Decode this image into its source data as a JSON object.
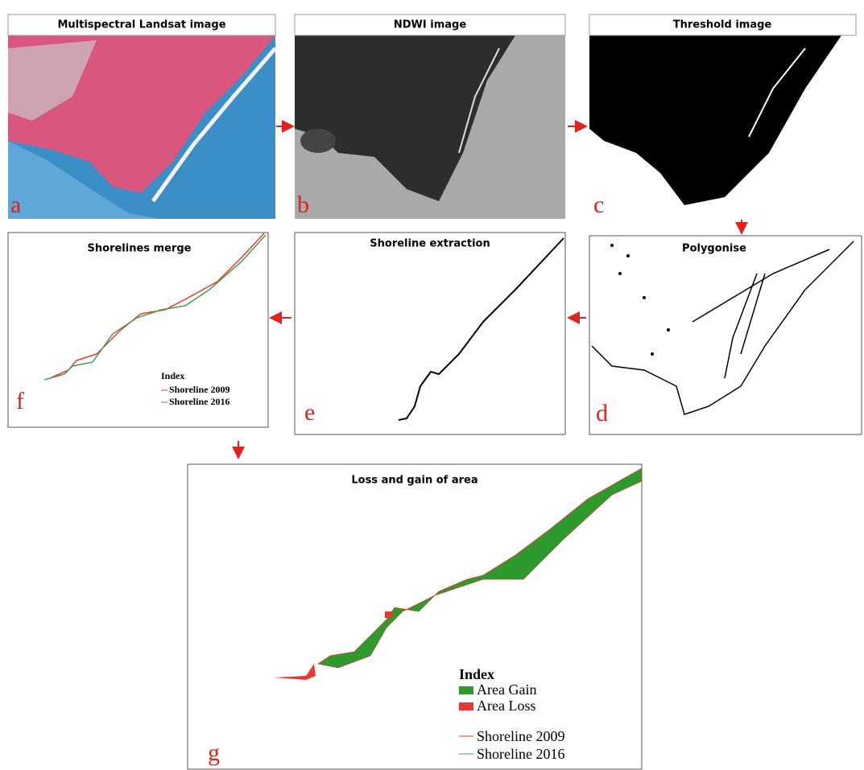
{
  "panels": {
    "a": {
      "title": "Multispectral Landsat image",
      "letter": "a"
    },
    "b": {
      "title": "NDWI image",
      "letter": "b"
    },
    "c": {
      "title": "Threshold image",
      "letter": "c"
    },
    "d": {
      "title": "Polygonise",
      "letter": "d"
    },
    "e": {
      "title": "Shoreline extraction",
      "letter": "e"
    },
    "f": {
      "title": "Shorelines merge",
      "letter": "f",
      "legend": {
        "heading": "Index",
        "items": [
          "Shoreline 2009",
          "Shoreline 2016"
        ]
      }
    },
    "g": {
      "title": "Loss and gain of area",
      "letter": "g",
      "legend": {
        "heading": "Index",
        "items": [
          "Area Gain",
          "Area Loss",
          "Shoreline 2009",
          "Shoreline 2016"
        ]
      }
    }
  }
}
